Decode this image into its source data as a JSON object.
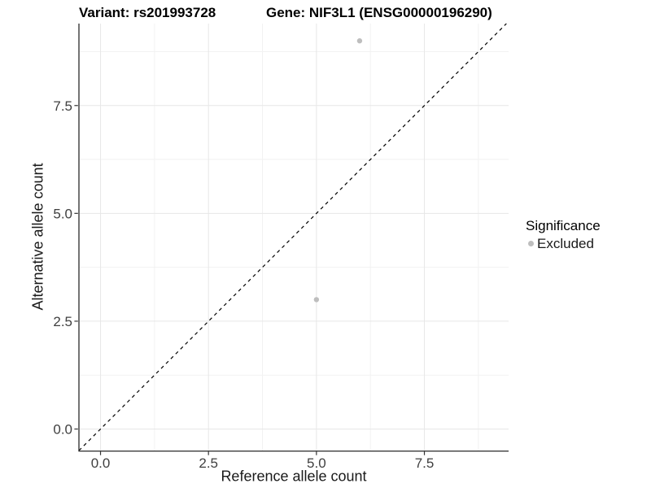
{
  "titles": {
    "variant": "Variant: rs201993728",
    "gene": "Gene: NIF3L1 (ENSG00000196290)"
  },
  "chart_data": {
    "type": "scatter",
    "title_left": "Variant: rs201993728",
    "title_right": "Gene: NIF3L1 (ENSG00000196290)",
    "xlabel": "Reference allele count",
    "ylabel": "Alternative allele count",
    "x_tick_labels": [
      "0.0",
      "2.5",
      "5.0",
      "7.5"
    ],
    "y_tick_labels": [
      "0.0",
      "2.5",
      "5.0",
      "7.5"
    ],
    "x_tick_values": [
      0,
      2.5,
      5,
      7.5
    ],
    "y_tick_values": [
      0,
      2.5,
      5,
      7.5
    ],
    "x_minor_values": [
      1.25,
      3.75,
      6.25,
      8.75
    ],
    "y_minor_values": [
      1.25,
      3.75,
      6.25,
      8.75
    ],
    "xlim": [
      -0.5,
      9.45
    ],
    "ylim": [
      -0.5,
      9.4
    ],
    "grid": "major+minor",
    "series": [
      {
        "name": "Excluded",
        "color": "#bebebe",
        "points": [
          {
            "x": 6,
            "y": 9
          },
          {
            "x": 5,
            "y": 3
          }
        ]
      }
    ],
    "reference_line": {
      "kind": "identity",
      "slope": 1,
      "intercept": 0,
      "linetype": "dashed",
      "color": "#000000"
    },
    "legend": {
      "title": "Significance",
      "position": "right",
      "entries": [
        {
          "label": "Excluded",
          "color": "#bebebe"
        }
      ]
    }
  },
  "colors": {
    "background": "#ffffff",
    "grid_major": "#e7e7e7",
    "grid_minor": "#f2f2f2",
    "axis_line": "#2a2a2a",
    "tick_mark": "#333333",
    "tick_text": "#404040",
    "point": "#bebebe",
    "identity_line": "#000000"
  }
}
